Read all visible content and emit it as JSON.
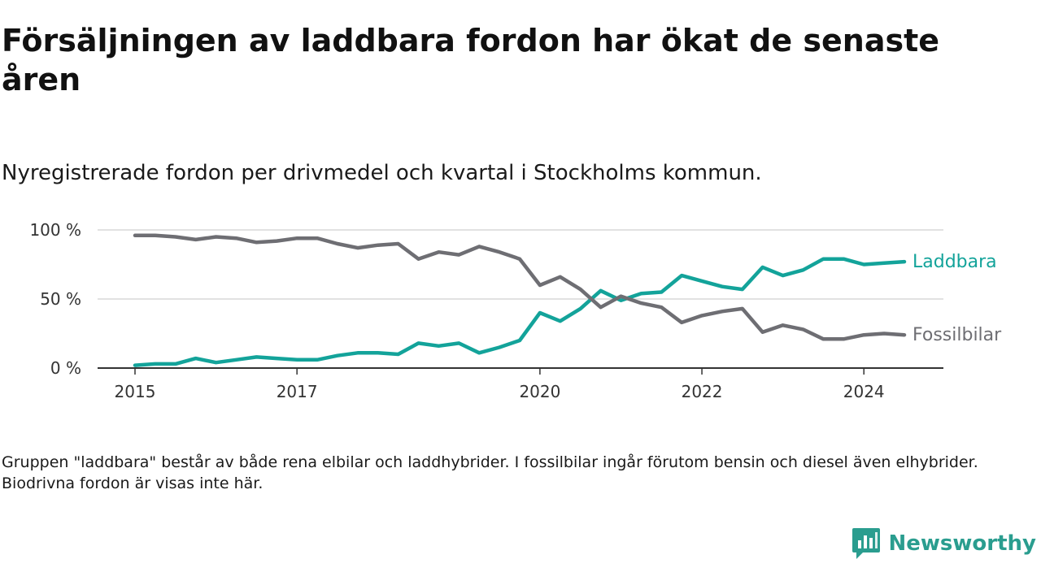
{
  "title": "Försäljningen av laddbara fordon har ökat de senaste åren",
  "subtitle": "Nyregistrerade fordon per drivmedel och kvartal i Stockholms kommun.",
  "footnote": "Gruppen \"laddbara\" består av både rena elbilar och laddhybrider. I fossilbilar ingår förutom bensin och diesel även elhybrider. Biodrivna fordon är visas inte här.",
  "brand": {
    "name": "Newsworthy",
    "icon": "newsworthy-logo-icon",
    "color": "#2a9d8f"
  },
  "chart_data": {
    "type": "line",
    "title": "Nyregistrerade fordon per drivmedel och kvartal i Stockholms kommun.",
    "xlabel": "",
    "ylabel": "",
    "x_start": 2015.0,
    "x_step": 0.25,
    "xlim": [
      2014.55,
      2024.95
    ],
    "ylim": [
      0,
      100
    ],
    "y_ticks": [
      {
        "value": 0,
        "label": "0 %"
      },
      {
        "value": 50,
        "label": "50 %"
      },
      {
        "value": 100,
        "label": "100 %"
      }
    ],
    "x_ticks": [
      {
        "value": 2015,
        "label": "2015"
      },
      {
        "value": 2017,
        "label": "2017"
      },
      {
        "value": 2020,
        "label": "2020"
      },
      {
        "value": 2022,
        "label": "2022"
      },
      {
        "value": 2024,
        "label": "2024"
      }
    ],
    "grid": true,
    "series": [
      {
        "name": "Laddbara",
        "color": "#13a39a",
        "values": [
          2,
          3,
          3,
          7,
          4,
          6,
          8,
          7,
          6,
          6,
          9,
          11,
          11,
          10,
          18,
          16,
          18,
          11,
          15,
          20,
          40,
          34,
          43,
          56,
          49,
          54,
          55,
          67,
          63,
          59,
          57,
          73,
          67,
          71,
          79,
          79,
          75,
          76,
          77
        ]
      },
      {
        "name": "Fossilbilar",
        "color": "#6e6e73",
        "values": [
          96,
          96,
          95,
          93,
          95,
          94,
          91,
          92,
          94,
          94,
          90,
          87,
          89,
          90,
          79,
          84,
          82,
          88,
          84,
          79,
          60,
          66,
          57,
          44,
          52,
          47,
          44,
          33,
          38,
          41,
          43,
          26,
          31,
          28,
          21,
          21,
          24,
          25,
          24
        ]
      }
    ]
  }
}
